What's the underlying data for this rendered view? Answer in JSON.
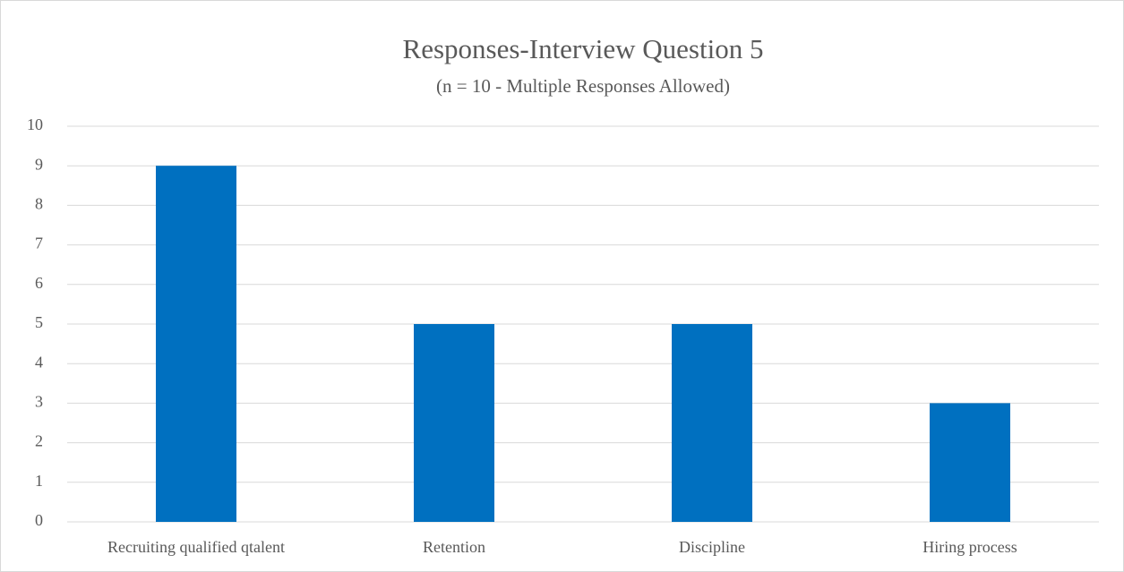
{
  "chart_data": {
    "type": "bar",
    "title": "Responses-Interview Question 5",
    "subtitle": "(n = 10 - Multiple Responses Allowed)",
    "categories": [
      "Recruiting qualified qtalent",
      "Retention",
      "Discipline",
      "Hiring process"
    ],
    "values": [
      9,
      5,
      5,
      3
    ],
    "color": "#0070c0",
    "ylim": [
      0,
      10
    ],
    "yticks": [
      0,
      1,
      2,
      3,
      4,
      5,
      6,
      7,
      8,
      9,
      10
    ],
    "grid": true
  }
}
